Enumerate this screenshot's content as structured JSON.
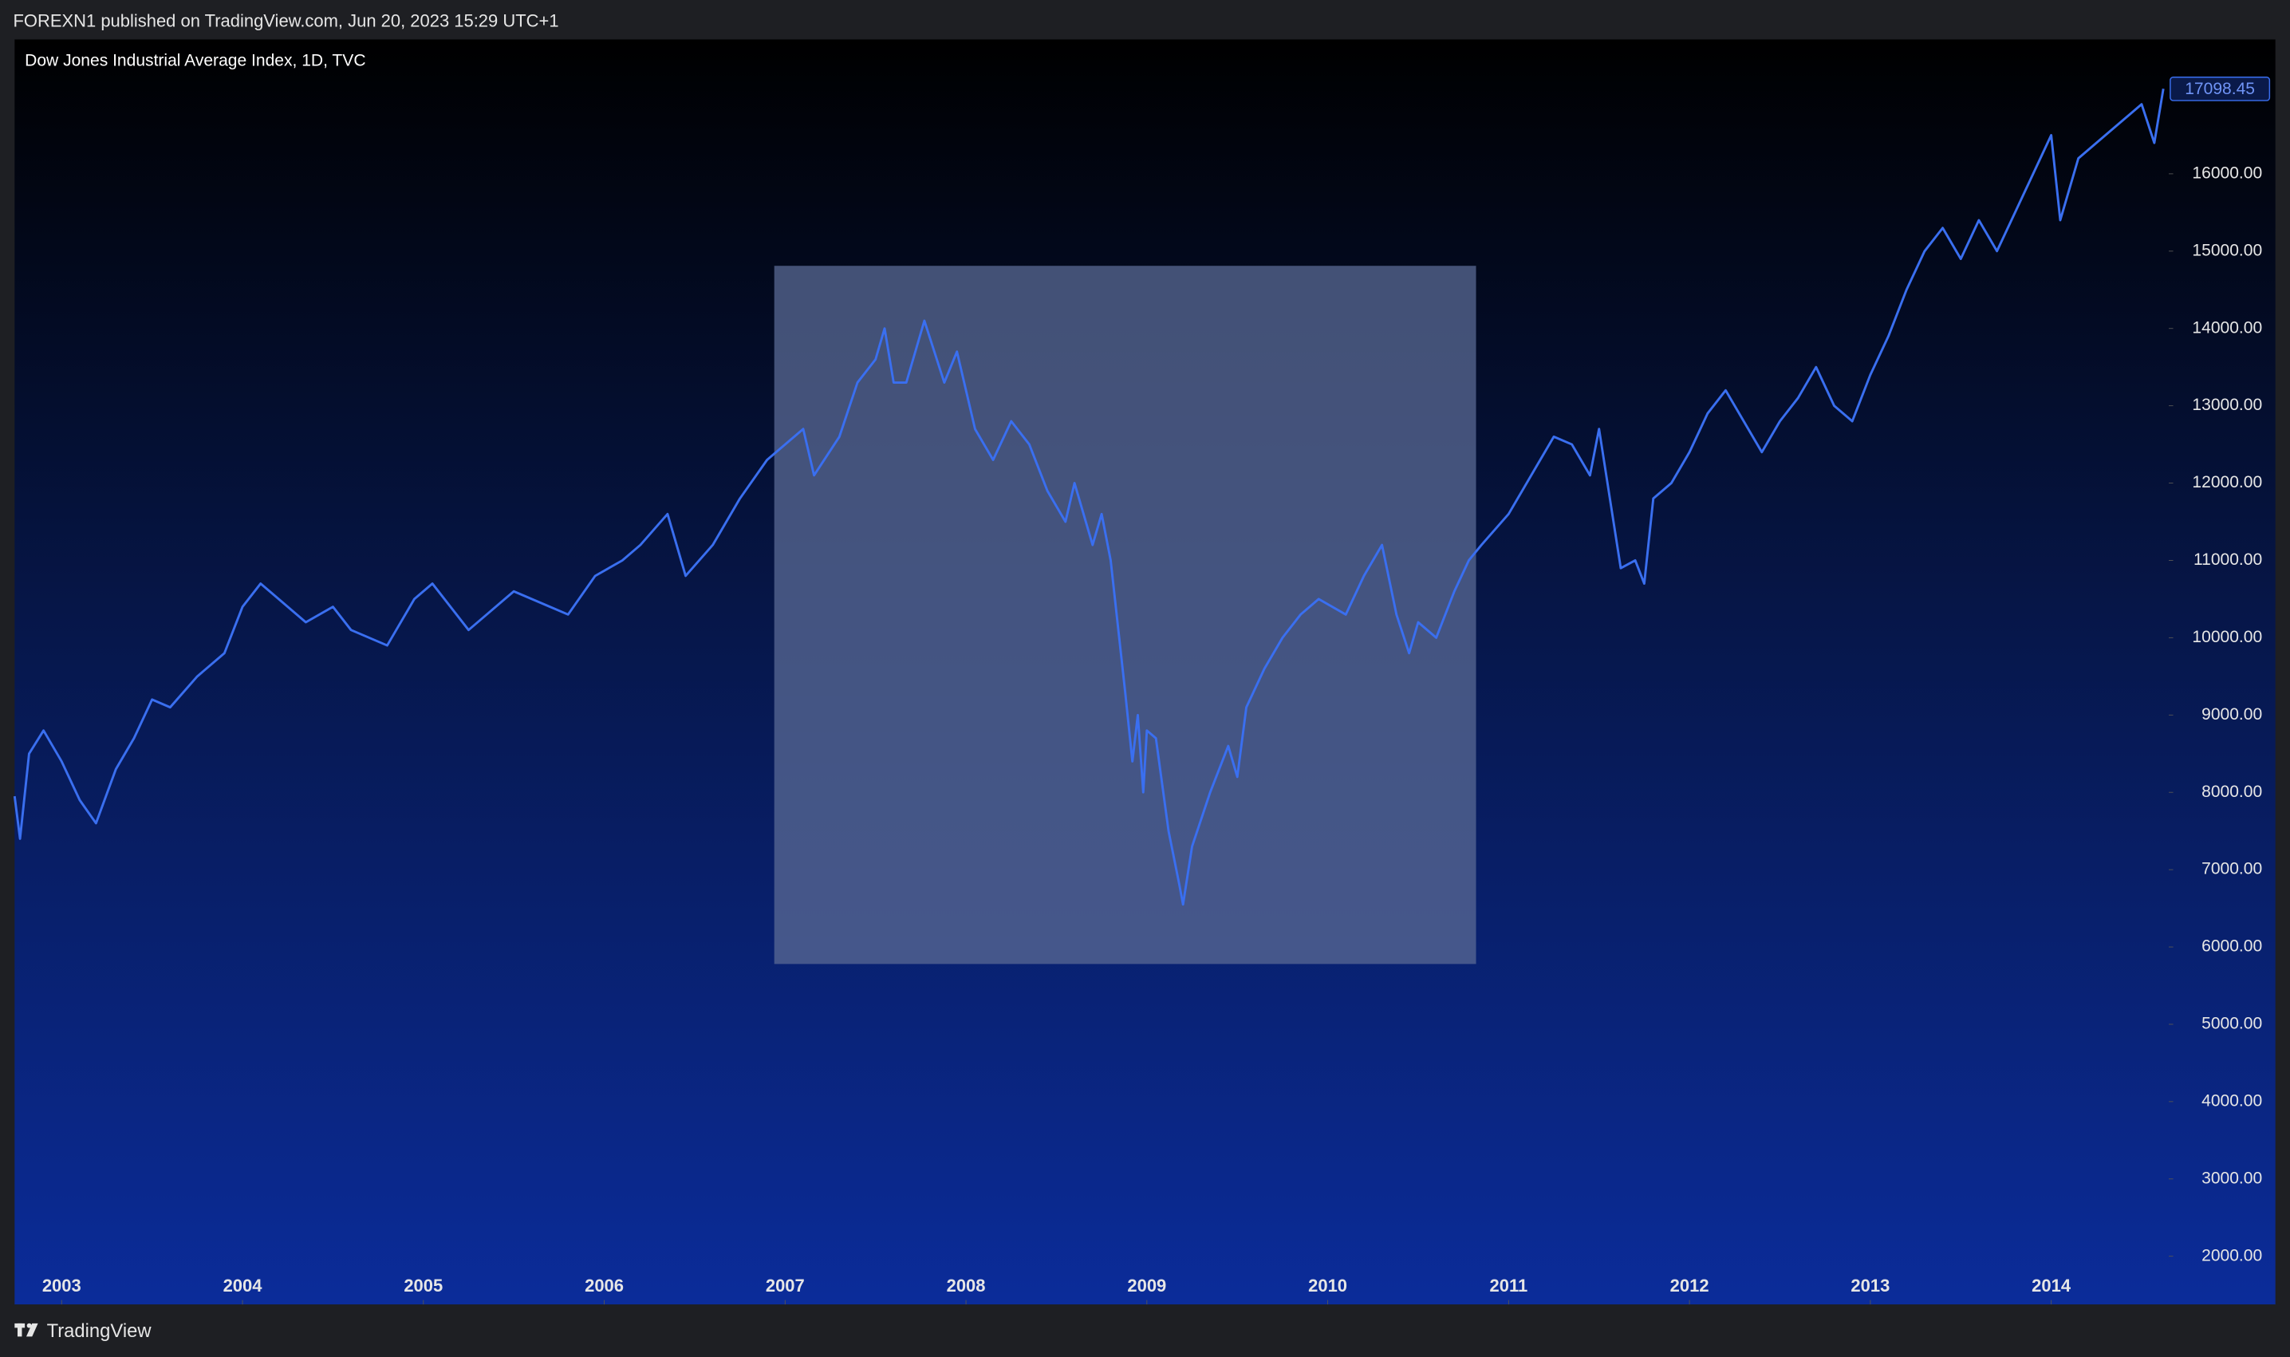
{
  "header": {
    "published": "FOREXN1 published on TradingView.com, Jun 20, 2023 15:29 UTC+1"
  },
  "footer": {
    "brand": "TradingView"
  },
  "chart_data": {
    "type": "line",
    "title": "Dow Jones Industrial Average Index, 1D, TVC",
    "x": [
      2002.74,
      2002.77,
      2002.82,
      2002.9,
      2002.95,
      2003.0,
      2003.1,
      2003.19,
      2003.3,
      2003.4,
      2003.5,
      2003.6,
      2003.75,
      2003.9,
      2004.0,
      2004.1,
      2004.2,
      2004.35,
      2004.5,
      2004.6,
      2004.8,
      2004.95,
      2005.05,
      2005.25,
      2005.35,
      2005.5,
      2005.7,
      2005.8,
      2005.95,
      2006.1,
      2006.2,
      2006.35,
      2006.45,
      2006.6,
      2006.75,
      2006.9,
      2007.0,
      2007.1,
      2007.16,
      2007.3,
      2007.4,
      2007.5,
      2007.55,
      2007.6,
      2007.67,
      2007.77,
      2007.88,
      2007.95,
      2008.0,
      2008.05,
      2008.15,
      2008.25,
      2008.35,
      2008.45,
      2008.55,
      2008.6,
      2008.7,
      2008.75,
      2008.8,
      2008.88,
      2008.92,
      2008.95,
      2008.98,
      2009.0,
      2009.05,
      2009.12,
      2009.18,
      2009.2,
      2009.25,
      2009.35,
      2009.45,
      2009.5,
      2009.55,
      2009.65,
      2009.75,
      2009.85,
      2009.95,
      2010.1,
      2010.2,
      2010.3,
      2010.38,
      2010.45,
      2010.5,
      2010.6,
      2010.7,
      2010.78,
      2010.85,
      2011.0,
      2011.15,
      2011.25,
      2011.35,
      2011.45,
      2011.5,
      2011.58,
      2011.62,
      2011.7,
      2011.75,
      2011.8,
      2011.9,
      2012.0,
      2012.1,
      2012.2,
      2012.3,
      2012.4,
      2012.5,
      2012.6,
      2012.7,
      2012.8,
      2012.9,
      2013.0,
      2013.1,
      2013.2,
      2013.3,
      2013.4,
      2013.5,
      2013.6,
      2013.7,
      2013.8,
      2013.9,
      2014.0,
      2014.05,
      2014.15,
      2014.3,
      2014.4,
      2014.5,
      2014.57,
      2014.62
    ],
    "series": [
      {
        "color": "#3a6ff0",
        "values": [
          7950,
          7400,
          8500,
          8800,
          8600,
          8400,
          7900,
          7600,
          8300,
          8700,
          9200,
          9100,
          9500,
          9800,
          10400,
          10700,
          10500,
          10200,
          10400,
          10100,
          9900,
          10500,
          10700,
          10100,
          10300,
          10600,
          10400,
          10300,
          10800,
          11000,
          11200,
          11600,
          10800,
          11200,
          11800,
          12300,
          12500,
          12700,
          12100,
          12600,
          13300,
          13600,
          14000,
          13300,
          13300,
          14100,
          13300,
          13700,
          13200,
          12700,
          12300,
          12800,
          12500,
          11900,
          11500,
          12000,
          11200,
          11600,
          11000,
          9300,
          8400,
          9000,
          8000,
          8800,
          8700,
          7500,
          6800,
          6550,
          7300,
          8000,
          8600,
          8200,
          9100,
          9600,
          10000,
          10300,
          10500,
          10300,
          10800,
          11200,
          10300,
          9800,
          10200,
          10000,
          10600,
          11000,
          11200,
          11600,
          12200,
          12600,
          12500,
          12100,
          12700,
          11500,
          10900,
          11000,
          10700,
          11800,
          12000,
          12400,
          12900,
          13200,
          12800,
          12400,
          12800,
          13100,
          13500,
          13000,
          12800,
          13400,
          13900,
          14500,
          15000,
          15300,
          14900,
          15400,
          15000,
          15500,
          16000,
          16500,
          15400,
          16200,
          16500,
          16700,
          16900,
          16400,
          17100
        ]
      }
    ],
    "last_value": 17098.45,
    "highlight": {
      "x": [
        2006.94,
        2010.82
      ],
      "y": [
        5780,
        14810
      ],
      "color": "#5a6a94"
    },
    "xlim": [
      2002.74,
      2014.65
    ],
    "xticks": [
      2003,
      2004,
      2005,
      2006,
      2007,
      2008,
      2009,
      2010,
      2011,
      2012,
      2013,
      2014
    ],
    "ylim": [
      1377,
      17738
    ],
    "yticks": [
      {
        "value": 2000,
        "label": "2000.00"
      },
      {
        "value": 3000,
        "label": "3000.00"
      },
      {
        "value": 4000,
        "label": "4000.00"
      },
      {
        "value": 5000,
        "label": "5000.00"
      },
      {
        "value": 6000,
        "label": "6000.00"
      },
      {
        "value": 7000,
        "label": "7000.00"
      },
      {
        "value": 8000,
        "label": "8000.00"
      },
      {
        "value": 9000,
        "label": "9000.00"
      },
      {
        "value": 10000,
        "label": "10000.00"
      },
      {
        "value": 11000,
        "label": "11000.00"
      },
      {
        "value": 12000,
        "label": "12000.00"
      },
      {
        "value": 13000,
        "label": "13000.00"
      },
      {
        "value": 14000,
        "label": "14000.00"
      },
      {
        "value": 15000,
        "label": "15000.00"
      },
      {
        "value": 16000,
        "label": "16000.00"
      }
    ]
  }
}
